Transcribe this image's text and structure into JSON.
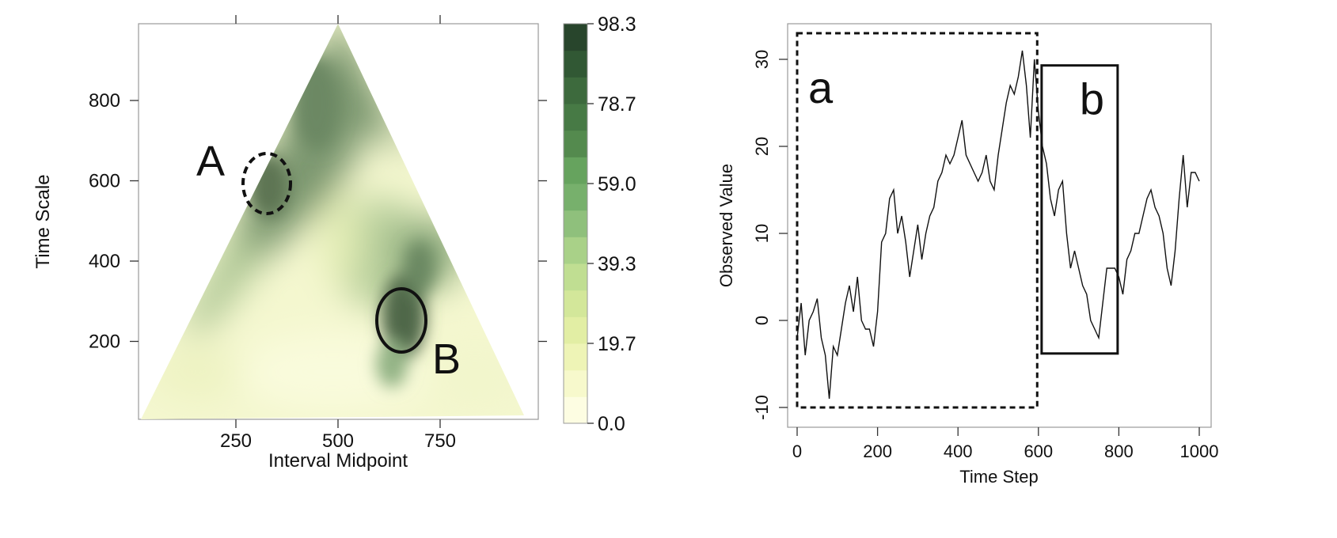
{
  "chart_data": [
    {
      "type": "heatmap",
      "xlabel": "Interval Midpoint",
      "ylabel": "Time Scale",
      "xlim": [
        0,
        1000
      ],
      "ylim": [
        0,
        1000
      ],
      "xticks": [
        250,
        500,
        750
      ],
      "yticks": [
        200,
        400,
        600,
        800
      ],
      "colorbar": {
        "range": [
          0.0,
          98.3
        ],
        "tick_labels": [
          "0.0",
          "19.7",
          "39.3",
          "59.0",
          "78.7",
          "98.3"
        ],
        "levels": 15,
        "colors": [
          "#fdfde2",
          "#f7f9cc",
          "#eef4b6",
          "#e2eea4",
          "#d3e79a",
          "#c0de92",
          "#a9d188",
          "#8fc07c",
          "#77b06c",
          "#66a35e",
          "#548a4e",
          "#477a45",
          "#3d6a3d",
          "#315834",
          "#28452c"
        ]
      },
      "annotations": [
        {
          "label": "A",
          "x": 330,
          "y": 600,
          "style": "dashed"
        },
        {
          "label": "B",
          "x": 660,
          "y": 250,
          "style": "solid"
        }
      ]
    },
    {
      "type": "line",
      "xlabel": "Time Step",
      "ylabel": "Observed Value",
      "xlim": [
        0,
        1000
      ],
      "ylim": [
        -10,
        30
      ],
      "xticks": [
        0,
        200,
        400,
        600,
        800,
        1000
      ],
      "yticks": [
        -10,
        0,
        10,
        20,
        30
      ],
      "x": [
        0,
        10,
        20,
        30,
        40,
        50,
        60,
        70,
        80,
        90,
        100,
        110,
        120,
        130,
        140,
        150,
        160,
        170,
        180,
        190,
        200,
        210,
        220,
        230,
        240,
        250,
        260,
        270,
        280,
        290,
        300,
        310,
        320,
        330,
        340,
        350,
        360,
        370,
        380,
        390,
        400,
        410,
        420,
        430,
        440,
        450,
        460,
        470,
        480,
        490,
        500,
        510,
        520,
        530,
        540,
        550,
        560,
        570,
        580,
        590,
        600,
        610,
        620,
        630,
        640,
        650,
        660,
        670,
        680,
        690,
        700,
        710,
        720,
        730,
        740,
        750,
        760,
        770,
        780,
        790,
        800,
        810,
        820,
        830,
        840,
        850,
        860,
        870,
        880,
        890,
        900,
        910,
        920,
        930,
        940,
        950,
        960,
        970,
        980,
        990,
        1000
      ],
      "y": [
        -2,
        2,
        -4,
        0,
        1,
        2.5,
        -2,
        -4,
        -9,
        -3,
        -4,
        -1,
        2,
        4,
        1,
        5,
        0,
        -1,
        -1,
        -3,
        1,
        9,
        10,
        14,
        15,
        10,
        12,
        9,
        5,
        8,
        11,
        7,
        10,
        12,
        13,
        16,
        17,
        19,
        18,
        19,
        21,
        23,
        19,
        18,
        17,
        16,
        17,
        19,
        16,
        15,
        19,
        22,
        25,
        27,
        26,
        28,
        31,
        27,
        21,
        30,
        24,
        20,
        18,
        14,
        12,
        15,
        16,
        10,
        6,
        8,
        6,
        4,
        3,
        0,
        -1,
        -2,
        2,
        6,
        6,
        6,
        5,
        3,
        7,
        8,
        10,
        10,
        12,
        14,
        15,
        13,
        12,
        10,
        6,
        4,
        8,
        14,
        19,
        13,
        17,
        17,
        16
      ],
      "regions": [
        {
          "label": "a",
          "x_range": [
            0,
            597
          ],
          "y_range": [
            -10,
            33
          ],
          "style": "dashed"
        },
        {
          "label": "b",
          "x_range": [
            608,
            797
          ],
          "y_range": [
            -3.8,
            29.3
          ],
          "style": "solid"
        }
      ]
    }
  ]
}
